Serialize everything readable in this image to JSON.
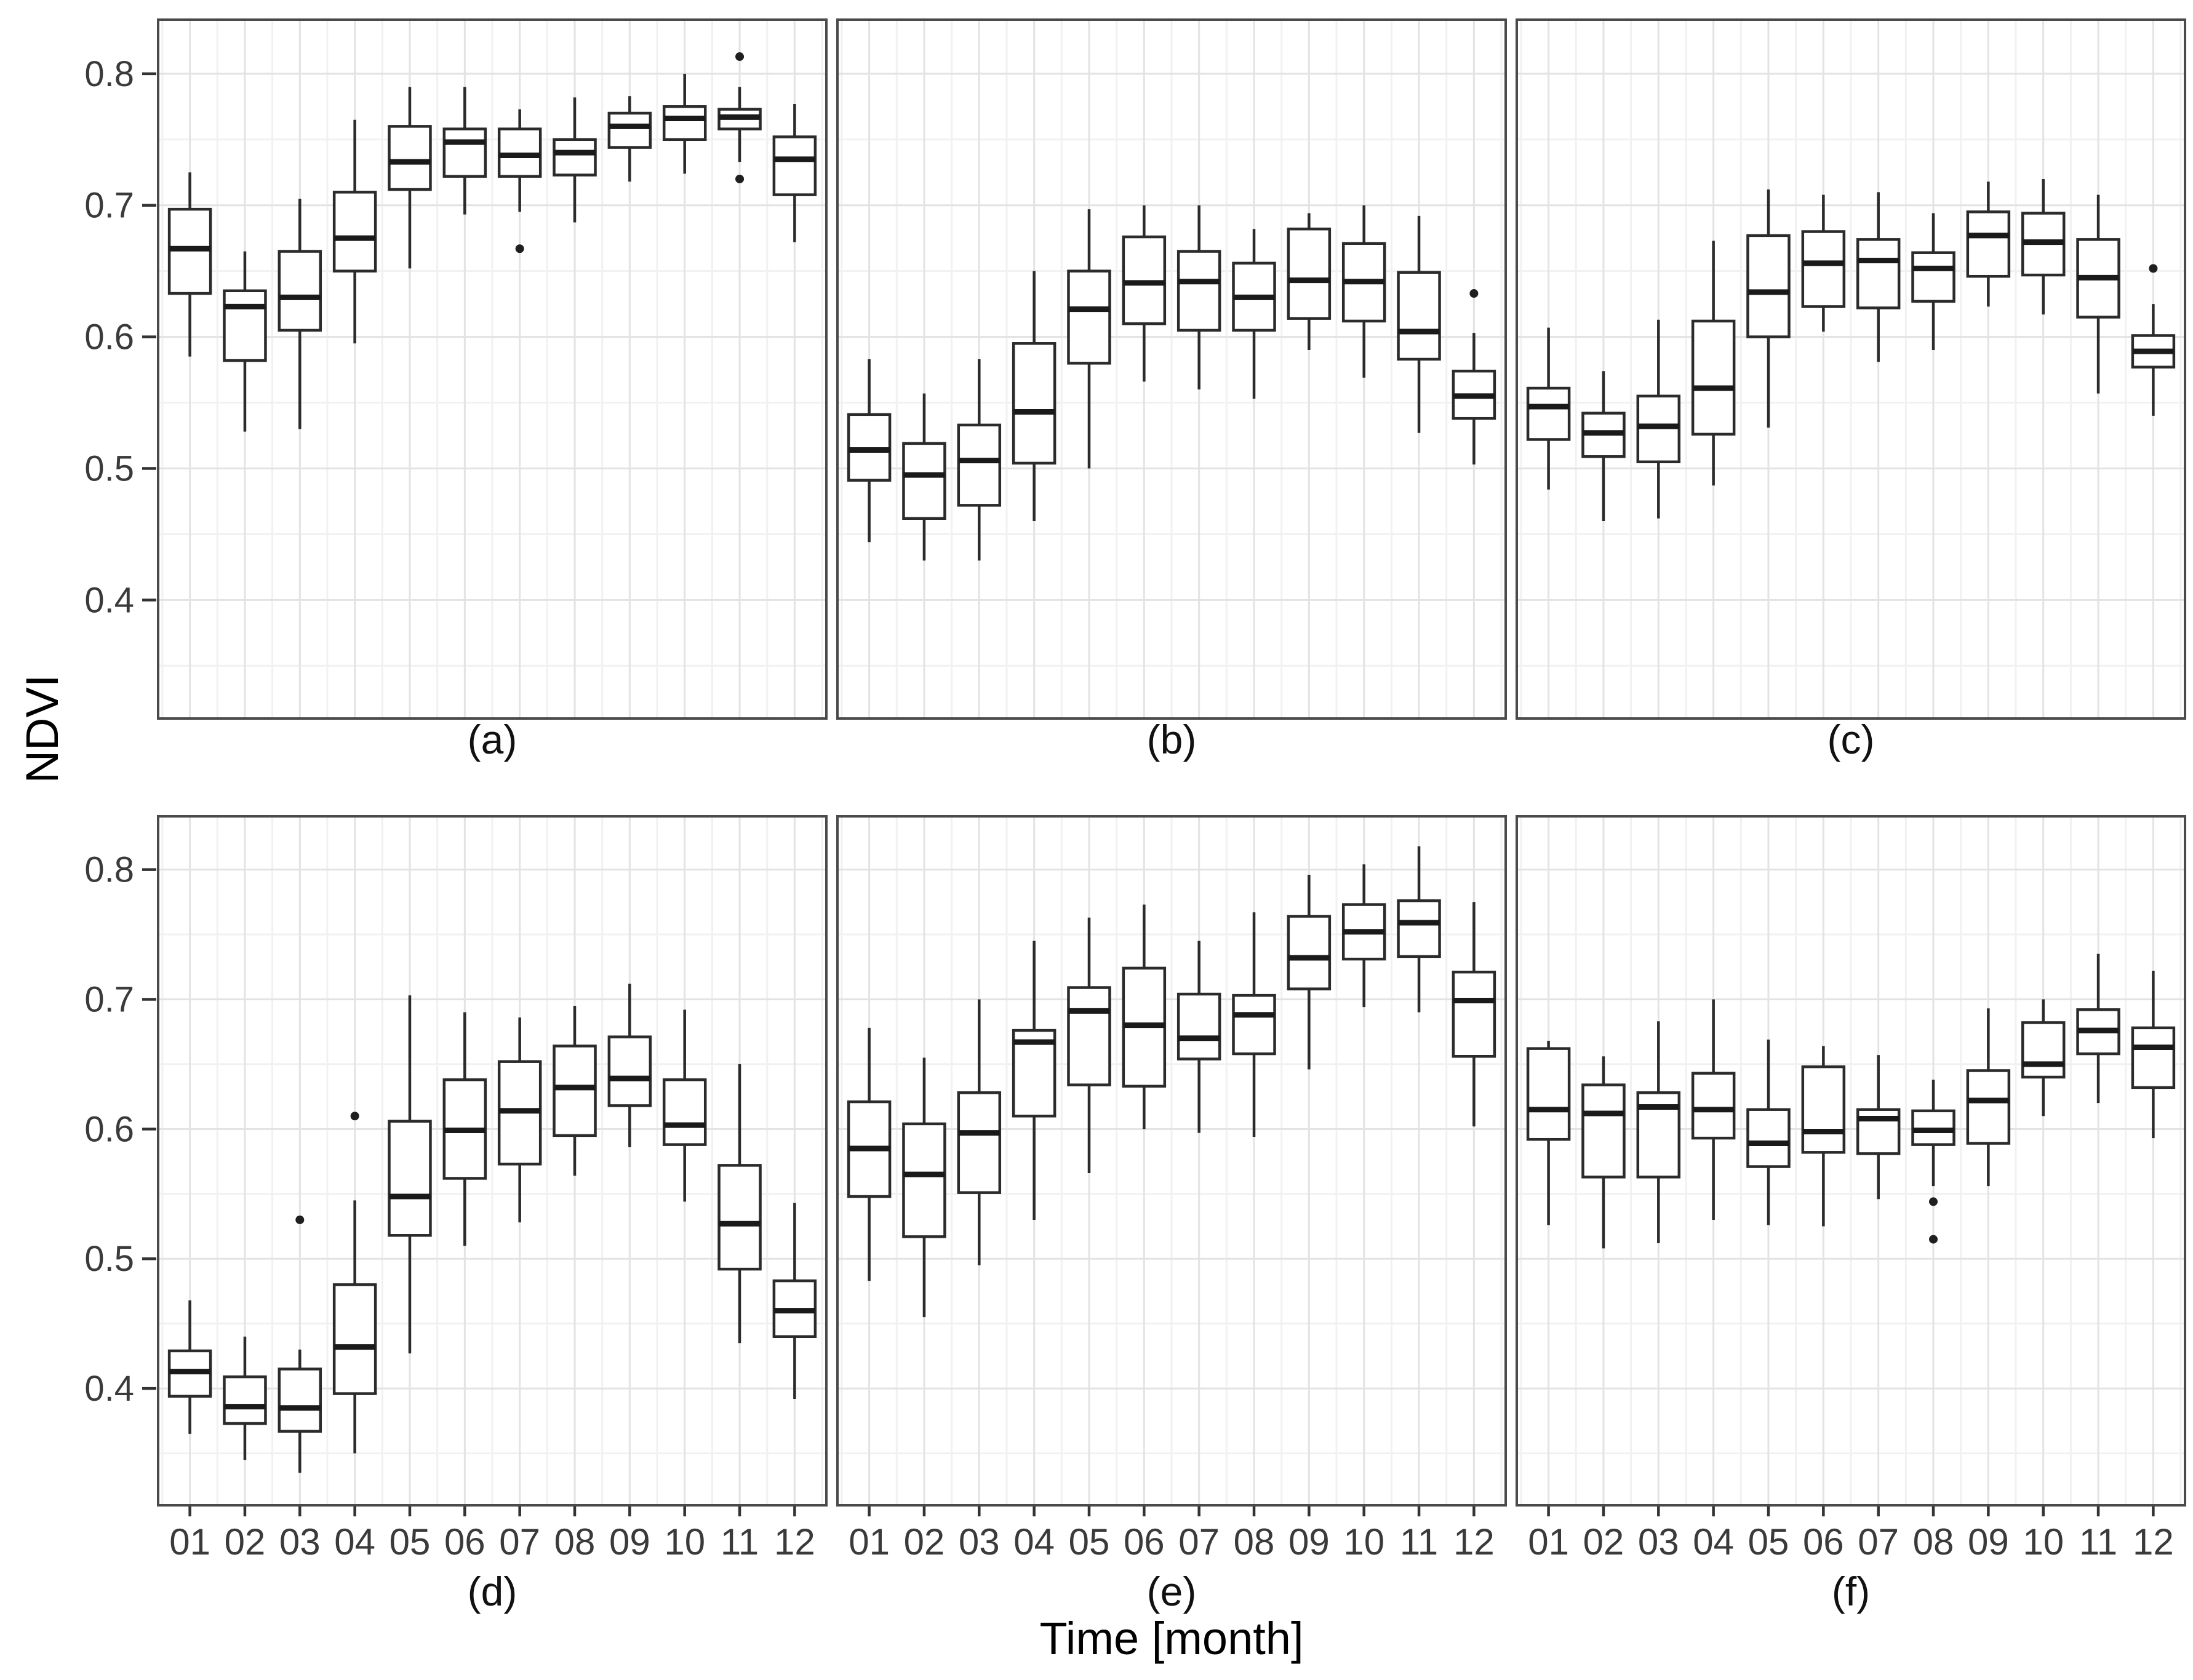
{
  "figure": {
    "ylabel": "NDVI",
    "xlabel": "Time [month]",
    "months": [
      "01",
      "02",
      "03",
      "04",
      "05",
      "06",
      "07",
      "08",
      "09",
      "10",
      "11",
      "12"
    ],
    "y_axis": {
      "ticks": [
        0.8,
        0.7,
        0.6,
        0.5,
        0.4
      ],
      "lim": [
        0.309,
        0.842
      ]
    },
    "colors": {
      "background": "#ffffff",
      "panel_border": "#4a4a4a",
      "grid_major": "#e3e3e3",
      "grid_minor": "#f1f1f1",
      "box_stroke": "#2b2b2b",
      "box_fill": "#ffffff",
      "median": "#1a1a1a",
      "outlier": "#1f1f1f",
      "tick_mark": "#333333",
      "tick_text": "#3a3a3a"
    }
  },
  "chart_data": [
    {
      "type": "boxplot",
      "label": "(a)",
      "categories": [
        "01",
        "02",
        "03",
        "04",
        "05",
        "06",
        "07",
        "08",
        "09",
        "10",
        "11",
        "12"
      ],
      "ylabel": "NDVI",
      "ylim": [
        0.309,
        0.842
      ],
      "boxes": [
        {
          "month": "01",
          "whislo": 0.585,
          "q1": 0.633,
          "med": 0.667,
          "q3": 0.697,
          "whishi": 0.725,
          "outliers": []
        },
        {
          "month": "02",
          "whislo": 0.528,
          "q1": 0.582,
          "med": 0.623,
          "q3": 0.635,
          "whishi": 0.665,
          "outliers": []
        },
        {
          "month": "03",
          "whislo": 0.53,
          "q1": 0.605,
          "med": 0.63,
          "q3": 0.665,
          "whishi": 0.705,
          "outliers": []
        },
        {
          "month": "04",
          "whislo": 0.595,
          "q1": 0.65,
          "med": 0.675,
          "q3": 0.71,
          "whishi": 0.765,
          "outliers": []
        },
        {
          "month": "05",
          "whislo": 0.652,
          "q1": 0.712,
          "med": 0.733,
          "q3": 0.76,
          "whishi": 0.79,
          "outliers": []
        },
        {
          "month": "06",
          "whislo": 0.693,
          "q1": 0.722,
          "med": 0.748,
          "q3": 0.758,
          "whishi": 0.79,
          "outliers": []
        },
        {
          "month": "07",
          "whislo": 0.695,
          "q1": 0.722,
          "med": 0.738,
          "q3": 0.758,
          "whishi": 0.773,
          "outliers": [
            0.667
          ]
        },
        {
          "month": "08",
          "whislo": 0.687,
          "q1": 0.723,
          "med": 0.74,
          "q3": 0.75,
          "whishi": 0.782,
          "outliers": []
        },
        {
          "month": "09",
          "whislo": 0.718,
          "q1": 0.744,
          "med": 0.76,
          "q3": 0.77,
          "whishi": 0.783,
          "outliers": []
        },
        {
          "month": "10",
          "whislo": 0.724,
          "q1": 0.75,
          "med": 0.766,
          "q3": 0.775,
          "whishi": 0.8,
          "outliers": []
        },
        {
          "month": "11",
          "whislo": 0.733,
          "q1": 0.758,
          "med": 0.767,
          "q3": 0.773,
          "whishi": 0.79,
          "outliers": [
            0.813,
            0.72
          ]
        },
        {
          "month": "12",
          "whislo": 0.672,
          "q1": 0.708,
          "med": 0.735,
          "q3": 0.752,
          "whishi": 0.777,
          "outliers": []
        }
      ]
    },
    {
      "type": "boxplot",
      "label": "(b)",
      "categories": [
        "01",
        "02",
        "03",
        "04",
        "05",
        "06",
        "07",
        "08",
        "09",
        "10",
        "11",
        "12"
      ],
      "ylabel": "NDVI",
      "ylim": [
        0.309,
        0.842
      ],
      "boxes": [
        {
          "month": "01",
          "whislo": 0.444,
          "q1": 0.491,
          "med": 0.514,
          "q3": 0.541,
          "whishi": 0.583,
          "outliers": []
        },
        {
          "month": "02",
          "whislo": 0.43,
          "q1": 0.462,
          "med": 0.495,
          "q3": 0.519,
          "whishi": 0.557,
          "outliers": []
        },
        {
          "month": "03",
          "whislo": 0.43,
          "q1": 0.472,
          "med": 0.506,
          "q3": 0.533,
          "whishi": 0.583,
          "outliers": []
        },
        {
          "month": "04",
          "whislo": 0.46,
          "q1": 0.504,
          "med": 0.543,
          "q3": 0.595,
          "whishi": 0.65,
          "outliers": []
        },
        {
          "month": "05",
          "whislo": 0.5,
          "q1": 0.58,
          "med": 0.621,
          "q3": 0.65,
          "whishi": 0.697,
          "outliers": []
        },
        {
          "month": "06",
          "whislo": 0.566,
          "q1": 0.61,
          "med": 0.641,
          "q3": 0.676,
          "whishi": 0.7,
          "outliers": []
        },
        {
          "month": "07",
          "whislo": 0.56,
          "q1": 0.605,
          "med": 0.642,
          "q3": 0.665,
          "whishi": 0.7,
          "outliers": []
        },
        {
          "month": "08",
          "whislo": 0.553,
          "q1": 0.605,
          "med": 0.63,
          "q3": 0.656,
          "whishi": 0.682,
          "outliers": []
        },
        {
          "month": "09",
          "whislo": 0.59,
          "q1": 0.614,
          "med": 0.643,
          "q3": 0.682,
          "whishi": 0.694,
          "outliers": []
        },
        {
          "month": "10",
          "whislo": 0.569,
          "q1": 0.612,
          "med": 0.642,
          "q3": 0.671,
          "whishi": 0.7,
          "outliers": []
        },
        {
          "month": "11",
          "whislo": 0.527,
          "q1": 0.583,
          "med": 0.604,
          "q3": 0.649,
          "whishi": 0.692,
          "outliers": []
        },
        {
          "month": "12",
          "whislo": 0.503,
          "q1": 0.538,
          "med": 0.555,
          "q3": 0.574,
          "whishi": 0.603,
          "outliers": [
            0.633
          ]
        }
      ]
    },
    {
      "type": "boxplot",
      "label": "(c)",
      "categories": [
        "01",
        "02",
        "03",
        "04",
        "05",
        "06",
        "07",
        "08",
        "09",
        "10",
        "11",
        "12"
      ],
      "ylabel": "NDVI",
      "ylim": [
        0.309,
        0.842
      ],
      "boxes": [
        {
          "month": "01",
          "whislo": 0.484,
          "q1": 0.522,
          "med": 0.547,
          "q3": 0.561,
          "whishi": 0.607,
          "outliers": []
        },
        {
          "month": "02",
          "whislo": 0.46,
          "q1": 0.509,
          "med": 0.527,
          "q3": 0.542,
          "whishi": 0.574,
          "outliers": []
        },
        {
          "month": "03",
          "whislo": 0.462,
          "q1": 0.505,
          "med": 0.532,
          "q3": 0.555,
          "whishi": 0.613,
          "outliers": []
        },
        {
          "month": "04",
          "whislo": 0.487,
          "q1": 0.526,
          "med": 0.561,
          "q3": 0.612,
          "whishi": 0.673,
          "outliers": []
        },
        {
          "month": "05",
          "whislo": 0.531,
          "q1": 0.6,
          "med": 0.634,
          "q3": 0.677,
          "whishi": 0.712,
          "outliers": []
        },
        {
          "month": "06",
          "whislo": 0.604,
          "q1": 0.623,
          "med": 0.656,
          "q3": 0.68,
          "whishi": 0.708,
          "outliers": []
        },
        {
          "month": "07",
          "whislo": 0.581,
          "q1": 0.622,
          "med": 0.658,
          "q3": 0.674,
          "whishi": 0.71,
          "outliers": []
        },
        {
          "month": "08",
          "whislo": 0.59,
          "q1": 0.627,
          "med": 0.652,
          "q3": 0.664,
          "whishi": 0.694,
          "outliers": []
        },
        {
          "month": "09",
          "whislo": 0.623,
          "q1": 0.646,
          "med": 0.677,
          "q3": 0.695,
          "whishi": 0.718,
          "outliers": []
        },
        {
          "month": "10",
          "whislo": 0.617,
          "q1": 0.647,
          "med": 0.672,
          "q3": 0.694,
          "whishi": 0.72,
          "outliers": []
        },
        {
          "month": "11",
          "whislo": 0.557,
          "q1": 0.615,
          "med": 0.645,
          "q3": 0.674,
          "whishi": 0.708,
          "outliers": []
        },
        {
          "month": "12",
          "whislo": 0.54,
          "q1": 0.577,
          "med": 0.589,
          "q3": 0.601,
          "whishi": 0.625,
          "outliers": [
            0.652
          ]
        }
      ]
    },
    {
      "type": "boxplot",
      "label": "(d)",
      "categories": [
        "01",
        "02",
        "03",
        "04",
        "05",
        "06",
        "07",
        "08",
        "09",
        "10",
        "11",
        "12"
      ],
      "ylabel": "NDVI",
      "ylim": [
        0.309,
        0.842
      ],
      "boxes": [
        {
          "month": "01",
          "whislo": 0.365,
          "q1": 0.394,
          "med": 0.413,
          "q3": 0.429,
          "whishi": 0.468,
          "outliers": []
        },
        {
          "month": "02",
          "whislo": 0.345,
          "q1": 0.373,
          "med": 0.386,
          "q3": 0.409,
          "whishi": 0.44,
          "outliers": []
        },
        {
          "month": "03",
          "whislo": 0.335,
          "q1": 0.367,
          "med": 0.385,
          "q3": 0.415,
          "whishi": 0.43,
          "outliers": [
            0.53
          ]
        },
        {
          "month": "04",
          "whislo": 0.35,
          "q1": 0.396,
          "med": 0.432,
          "q3": 0.48,
          "whishi": 0.545,
          "outliers": [
            0.61
          ]
        },
        {
          "month": "05",
          "whislo": 0.427,
          "q1": 0.518,
          "med": 0.548,
          "q3": 0.606,
          "whishi": 0.703,
          "outliers": []
        },
        {
          "month": "06",
          "whislo": 0.51,
          "q1": 0.562,
          "med": 0.599,
          "q3": 0.638,
          "whishi": 0.69,
          "outliers": []
        },
        {
          "month": "07",
          "whislo": 0.528,
          "q1": 0.573,
          "med": 0.614,
          "q3": 0.652,
          "whishi": 0.686,
          "outliers": []
        },
        {
          "month": "08",
          "whislo": 0.564,
          "q1": 0.595,
          "med": 0.632,
          "q3": 0.664,
          "whishi": 0.695,
          "outliers": []
        },
        {
          "month": "09",
          "whislo": 0.586,
          "q1": 0.618,
          "med": 0.639,
          "q3": 0.671,
          "whishi": 0.712,
          "outliers": []
        },
        {
          "month": "10",
          "whislo": 0.544,
          "q1": 0.588,
          "med": 0.603,
          "q3": 0.638,
          "whishi": 0.692,
          "outliers": []
        },
        {
          "month": "11",
          "whislo": 0.435,
          "q1": 0.492,
          "med": 0.527,
          "q3": 0.572,
          "whishi": 0.65,
          "outliers": []
        },
        {
          "month": "12",
          "whislo": 0.392,
          "q1": 0.44,
          "med": 0.46,
          "q3": 0.483,
          "whishi": 0.543,
          "outliers": []
        }
      ]
    },
    {
      "type": "boxplot",
      "label": "(e)",
      "categories": [
        "01",
        "02",
        "03",
        "04",
        "05",
        "06",
        "07",
        "08",
        "09",
        "10",
        "11",
        "12"
      ],
      "ylabel": "NDVI",
      "ylim": [
        0.309,
        0.842
      ],
      "boxes": [
        {
          "month": "01",
          "whislo": 0.483,
          "q1": 0.548,
          "med": 0.585,
          "q3": 0.621,
          "whishi": 0.678,
          "outliers": []
        },
        {
          "month": "02",
          "whislo": 0.455,
          "q1": 0.517,
          "med": 0.565,
          "q3": 0.604,
          "whishi": 0.655,
          "outliers": []
        },
        {
          "month": "03",
          "whislo": 0.495,
          "q1": 0.551,
          "med": 0.597,
          "q3": 0.628,
          "whishi": 0.7,
          "outliers": []
        },
        {
          "month": "04",
          "whislo": 0.53,
          "q1": 0.61,
          "med": 0.667,
          "q3": 0.676,
          "whishi": 0.745,
          "outliers": []
        },
        {
          "month": "05",
          "whislo": 0.566,
          "q1": 0.634,
          "med": 0.691,
          "q3": 0.709,
          "whishi": 0.763,
          "outliers": []
        },
        {
          "month": "06",
          "whislo": 0.6,
          "q1": 0.633,
          "med": 0.68,
          "q3": 0.724,
          "whishi": 0.773,
          "outliers": []
        },
        {
          "month": "07",
          "whislo": 0.597,
          "q1": 0.654,
          "med": 0.67,
          "q3": 0.704,
          "whishi": 0.745,
          "outliers": []
        },
        {
          "month": "08",
          "whislo": 0.594,
          "q1": 0.658,
          "med": 0.688,
          "q3": 0.703,
          "whishi": 0.767,
          "outliers": []
        },
        {
          "month": "09",
          "whislo": 0.646,
          "q1": 0.708,
          "med": 0.732,
          "q3": 0.764,
          "whishi": 0.796,
          "outliers": []
        },
        {
          "month": "10",
          "whislo": 0.694,
          "q1": 0.731,
          "med": 0.752,
          "q3": 0.773,
          "whishi": 0.804,
          "outliers": []
        },
        {
          "month": "11",
          "whislo": 0.69,
          "q1": 0.733,
          "med": 0.759,
          "q3": 0.776,
          "whishi": 0.818,
          "outliers": []
        },
        {
          "month": "12",
          "whislo": 0.602,
          "q1": 0.656,
          "med": 0.699,
          "q3": 0.721,
          "whishi": 0.775,
          "outliers": []
        }
      ]
    },
    {
      "type": "boxplot",
      "label": "(f)",
      "categories": [
        "01",
        "02",
        "03",
        "04",
        "05",
        "06",
        "07",
        "08",
        "09",
        "10",
        "11",
        "12"
      ],
      "ylabel": "NDVI",
      "ylim": [
        0.309,
        0.842
      ],
      "boxes": [
        {
          "month": "01",
          "whislo": 0.526,
          "q1": 0.592,
          "med": 0.615,
          "q3": 0.662,
          "whishi": 0.668,
          "outliers": []
        },
        {
          "month": "02",
          "whislo": 0.508,
          "q1": 0.563,
          "med": 0.612,
          "q3": 0.634,
          "whishi": 0.656,
          "outliers": []
        },
        {
          "month": "03",
          "whislo": 0.512,
          "q1": 0.563,
          "med": 0.617,
          "q3": 0.628,
          "whishi": 0.683,
          "outliers": []
        },
        {
          "month": "04",
          "whislo": 0.53,
          "q1": 0.593,
          "med": 0.615,
          "q3": 0.643,
          "whishi": 0.7,
          "outliers": []
        },
        {
          "month": "05",
          "whislo": 0.526,
          "q1": 0.571,
          "med": 0.589,
          "q3": 0.615,
          "whishi": 0.669,
          "outliers": []
        },
        {
          "month": "06",
          "whislo": 0.525,
          "q1": 0.582,
          "med": 0.598,
          "q3": 0.648,
          "whishi": 0.664,
          "outliers": []
        },
        {
          "month": "07",
          "whislo": 0.546,
          "q1": 0.581,
          "med": 0.608,
          "q3": 0.615,
          "whishi": 0.657,
          "outliers": []
        },
        {
          "month": "08",
          "whislo": 0.556,
          "q1": 0.588,
          "med": 0.599,
          "q3": 0.614,
          "whishi": 0.638,
          "outliers": [
            0.544,
            0.515
          ]
        },
        {
          "month": "09",
          "whislo": 0.556,
          "q1": 0.589,
          "med": 0.622,
          "q3": 0.645,
          "whishi": 0.693,
          "outliers": []
        },
        {
          "month": "10",
          "whislo": 0.61,
          "q1": 0.64,
          "med": 0.65,
          "q3": 0.682,
          "whishi": 0.7,
          "outliers": []
        },
        {
          "month": "11",
          "whislo": 0.62,
          "q1": 0.658,
          "med": 0.676,
          "q3": 0.692,
          "whishi": 0.735,
          "outliers": []
        },
        {
          "month": "12",
          "whislo": 0.593,
          "q1": 0.632,
          "med": 0.663,
          "q3": 0.678,
          "whishi": 0.722,
          "outliers": []
        }
      ]
    }
  ]
}
